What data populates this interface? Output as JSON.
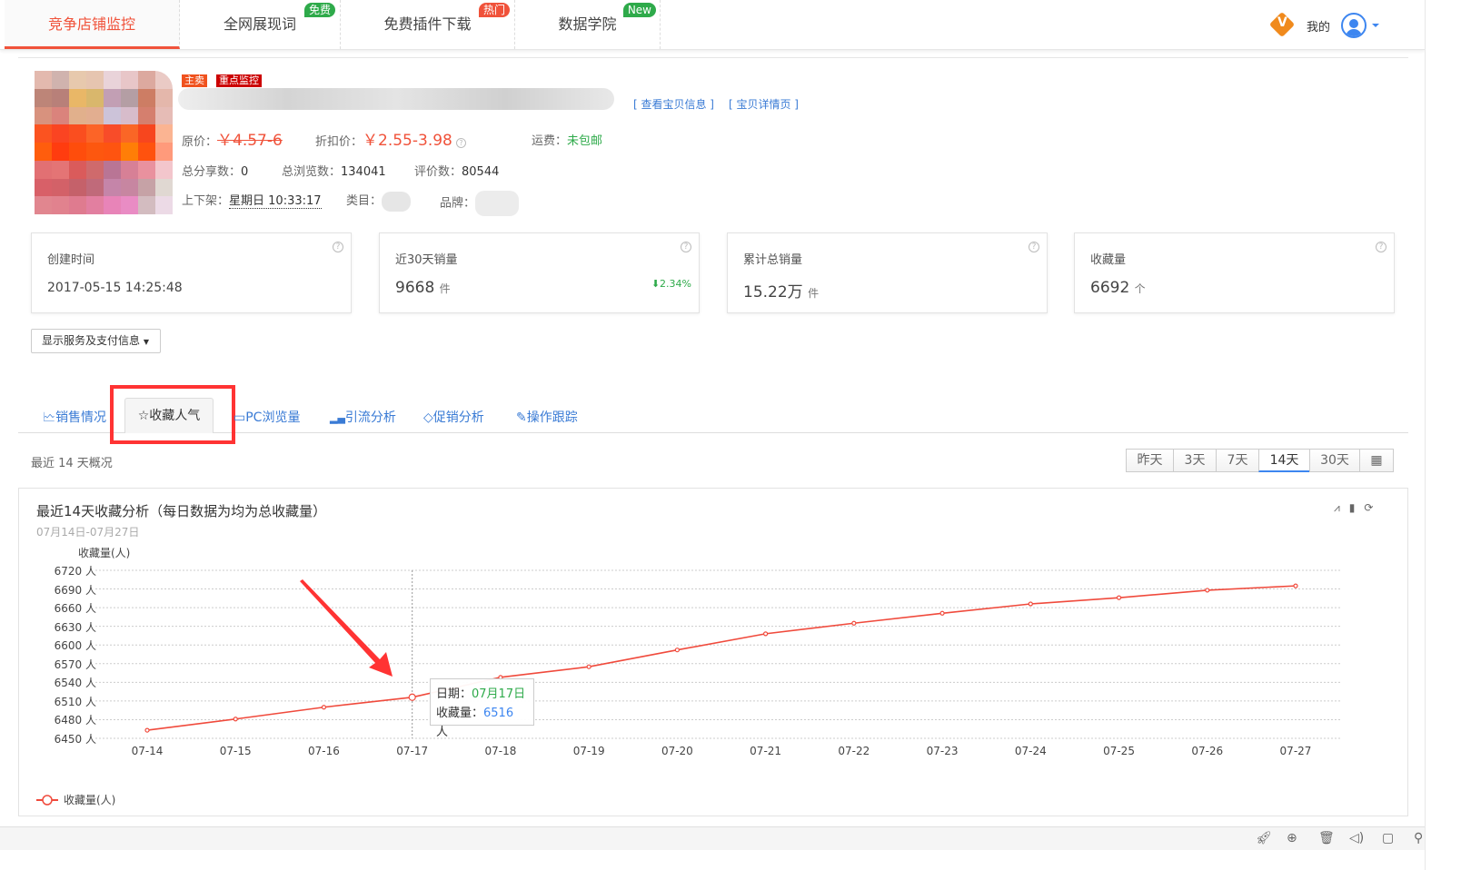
{
  "nav": {
    "tabs": [
      {
        "label": "竞争店铺监控",
        "active": true
      },
      {
        "label": "全网展现词",
        "badge": "免费",
        "badge_color": "#2eaa4a"
      },
      {
        "label": "免费插件下载",
        "badge": "热门",
        "badge_color": "#f0523a"
      },
      {
        "label": "数据学院",
        "badge": "New",
        "badge_color": "#2eaa4a"
      }
    ],
    "vip_icon": "vip-badge-icon",
    "my_label": "我的",
    "avatar_icon": "user-avatar-icon"
  },
  "product": {
    "tags": [
      "主卖",
      "重点监控"
    ],
    "view_info": "[ 查看宝贝信息 ]",
    "detail_link": "[ 宝贝详情页 ]",
    "orig_price_label": "原价：",
    "orig_price": "￥4.57-6",
    "disc_price_label": "折扣价：",
    "disc_price": "￥2.55-3.98",
    "shipping_label": "运费：",
    "shipping": "未包邮",
    "shares_label": "总分享数：",
    "shares": "0",
    "views_label": "总浏览数：",
    "views": "134041",
    "reviews_label": "评价数：",
    "reviews": "80544",
    "listing_label": "上下架：",
    "listing": "星期日 10:33:17",
    "category_label": "类目：",
    "brand_label": "品牌："
  },
  "cards": [
    {
      "title": "创建时间",
      "value": "2017-05-15 14:25:48",
      "unit": ""
    },
    {
      "title": "近30天销量",
      "value": "9668",
      "unit": "件",
      "change": "2.34%"
    },
    {
      "title": "累计总销量",
      "value": "15.22万",
      "unit": "件"
    },
    {
      "title": "收藏量",
      "value": "6692",
      "unit": "个"
    }
  ],
  "service_dropdown": "显示服务及支付信息",
  "tabs": [
    {
      "label": "销售情况"
    },
    {
      "label": "收藏人气",
      "active": true
    },
    {
      "label": "PC浏览量"
    },
    {
      "label": "引流分析"
    },
    {
      "label": "促销分析"
    },
    {
      "label": "操作跟踪"
    }
  ],
  "overview_label": "最近 14 天概况",
  "ranges": [
    {
      "label": "昨天"
    },
    {
      "label": "3天"
    },
    {
      "label": "7天"
    },
    {
      "label": "14天",
      "active": true
    },
    {
      "label": "30天"
    },
    {
      "label": "calendar-icon"
    }
  ],
  "chart_data": {
    "type": "line",
    "title": "最近14天收藏分析（每日数据为均为总收藏量）",
    "subtitle": "07月14日-07月27日",
    "ylabel": "收藏量(人)",
    "ylim": [
      6450,
      6720
    ],
    "yticks": [
      "6720 人",
      "6690 人",
      "6660 人",
      "6630 人",
      "6600 人",
      "6570 人",
      "6540 人",
      "6510 人",
      "6480 人",
      "6450 人"
    ],
    "ytick_values": [
      6720,
      6690,
      6660,
      6630,
      6600,
      6570,
      6540,
      6510,
      6480,
      6450
    ],
    "x": [
      "07-14",
      "07-15",
      "07-16",
      "07-17",
      "07-18",
      "07-19",
      "07-20",
      "07-21",
      "07-22",
      "07-23",
      "07-24",
      "07-25",
      "07-26",
      "07-27"
    ],
    "series": [
      {
        "name": "收藏量(人)",
        "color": "#f04a3c",
        "values": [
          6463,
          6481,
          6500,
          6516,
          6548,
          6565,
          6592,
          6618,
          6635,
          6651,
          6666,
          6676,
          6688,
          6695
        ]
      }
    ],
    "grid": true,
    "legend": "bottom-left",
    "tooltip": {
      "date_label": "日期：",
      "date": "07月17日",
      "value_label": "收藏量：",
      "value": "6516",
      "unit": "人"
    }
  },
  "footer_icons": [
    "rocket-icon",
    "add-circle-icon",
    "trash-icon",
    "speaker-icon",
    "window-icon",
    "search-icon"
  ]
}
